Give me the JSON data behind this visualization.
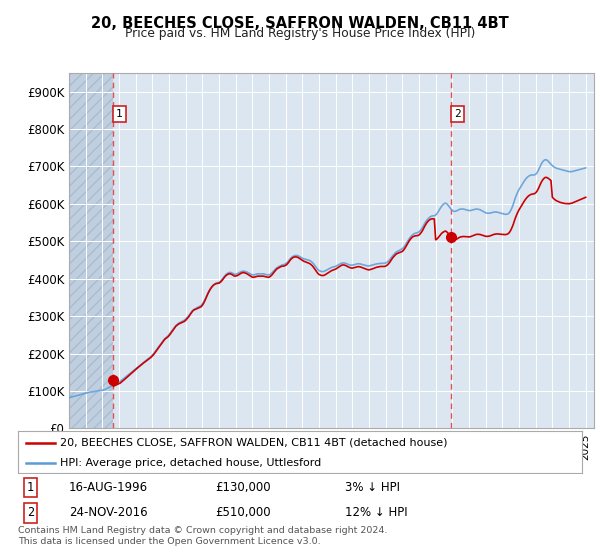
{
  "title": "20, BEECHES CLOSE, SAFFRON WALDEN, CB11 4BT",
  "subtitle": "Price paid vs. HM Land Registry's House Price Index (HPI)",
  "xlim_start": 1994.0,
  "xlim_end": 2025.5,
  "ylim_min": 0,
  "ylim_max": 950000,
  "yticks": [
    0,
    100000,
    200000,
    300000,
    400000,
    500000,
    600000,
    700000,
    800000,
    900000
  ],
  "ytick_labels": [
    "£0",
    "£100K",
    "£200K",
    "£300K",
    "£400K",
    "£500K",
    "£600K",
    "£700K",
    "£800K",
    "£900K"
  ],
  "background_color": "#ffffff",
  "plot_bg_color": "#dce6f1",
  "grid_color": "#ffffff",
  "legend_label_red": "20, BEECHES CLOSE, SAFFRON WALDEN, CB11 4BT (detached house)",
  "legend_label_blue": "HPI: Average price, detached house, Uttlesford",
  "footnote": "Contains HM Land Registry data © Crown copyright and database right 2024.\nThis data is licensed under the Open Government Licence v3.0.",
  "sale1_x": 1996.62,
  "sale1_y": 130000,
  "sale2_x": 2016.9,
  "sale2_y": 510000,
  "table_row1": [
    "1",
    "16-AUG-1996",
    "£130,000",
    "3% ↓ HPI"
  ],
  "table_row2": [
    "2",
    "24-NOV-2016",
    "£510,000",
    "12% ↓ HPI"
  ],
  "red_line_color": "#cc0000",
  "blue_line_color": "#5b9bd5",
  "hpi_x": [
    1994.0,
    1994.083,
    1994.167,
    1994.25,
    1994.333,
    1994.417,
    1994.5,
    1994.583,
    1994.667,
    1994.75,
    1994.833,
    1994.917,
    1995.0,
    1995.083,
    1995.167,
    1995.25,
    1995.333,
    1995.417,
    1995.5,
    1995.583,
    1995.667,
    1995.75,
    1995.833,
    1995.917,
    1996.0,
    1996.083,
    1996.167,
    1996.25,
    1996.333,
    1996.417,
    1996.5,
    1996.583,
    1996.667,
    1996.75,
    1996.833,
    1996.917,
    1997.0,
    1997.083,
    1997.167,
    1997.25,
    1997.333,
    1997.417,
    1997.5,
    1997.583,
    1997.667,
    1997.75,
    1997.833,
    1997.917,
    1998.0,
    1998.083,
    1998.167,
    1998.25,
    1998.333,
    1998.417,
    1998.5,
    1998.583,
    1998.667,
    1998.75,
    1998.833,
    1998.917,
    1999.0,
    1999.083,
    1999.167,
    1999.25,
    1999.333,
    1999.417,
    1999.5,
    1999.583,
    1999.667,
    1999.75,
    1999.833,
    1999.917,
    2000.0,
    2000.083,
    2000.167,
    2000.25,
    2000.333,
    2000.417,
    2000.5,
    2000.583,
    2000.667,
    2000.75,
    2000.833,
    2000.917,
    2001.0,
    2001.083,
    2001.167,
    2001.25,
    2001.333,
    2001.417,
    2001.5,
    2001.583,
    2001.667,
    2001.75,
    2001.833,
    2001.917,
    2002.0,
    2002.083,
    2002.167,
    2002.25,
    2002.333,
    2002.417,
    2002.5,
    2002.583,
    2002.667,
    2002.75,
    2002.833,
    2002.917,
    2003.0,
    2003.083,
    2003.167,
    2003.25,
    2003.333,
    2003.417,
    2003.5,
    2003.583,
    2003.667,
    2003.75,
    2003.833,
    2003.917,
    2004.0,
    2004.083,
    2004.167,
    2004.25,
    2004.333,
    2004.417,
    2004.5,
    2004.583,
    2004.667,
    2004.75,
    2004.833,
    2004.917,
    2005.0,
    2005.083,
    2005.167,
    2005.25,
    2005.333,
    2005.417,
    2005.5,
    2005.583,
    2005.667,
    2005.75,
    2005.833,
    2005.917,
    2006.0,
    2006.083,
    2006.167,
    2006.25,
    2006.333,
    2006.417,
    2006.5,
    2006.583,
    2006.667,
    2006.75,
    2006.833,
    2006.917,
    2007.0,
    2007.083,
    2007.167,
    2007.25,
    2007.333,
    2007.417,
    2007.5,
    2007.583,
    2007.667,
    2007.75,
    2007.833,
    2007.917,
    2008.0,
    2008.083,
    2008.167,
    2008.25,
    2008.333,
    2008.417,
    2008.5,
    2008.583,
    2008.667,
    2008.75,
    2008.833,
    2008.917,
    2009.0,
    2009.083,
    2009.167,
    2009.25,
    2009.333,
    2009.417,
    2009.5,
    2009.583,
    2009.667,
    2009.75,
    2009.833,
    2009.917,
    2010.0,
    2010.083,
    2010.167,
    2010.25,
    2010.333,
    2010.417,
    2010.5,
    2010.583,
    2010.667,
    2010.75,
    2010.833,
    2010.917,
    2011.0,
    2011.083,
    2011.167,
    2011.25,
    2011.333,
    2011.417,
    2011.5,
    2011.583,
    2011.667,
    2011.75,
    2011.833,
    2011.917,
    2012.0,
    2012.083,
    2012.167,
    2012.25,
    2012.333,
    2012.417,
    2012.5,
    2012.583,
    2012.667,
    2012.75,
    2012.833,
    2012.917,
    2013.0,
    2013.083,
    2013.167,
    2013.25,
    2013.333,
    2013.417,
    2013.5,
    2013.583,
    2013.667,
    2013.75,
    2013.833,
    2013.917,
    2014.0,
    2014.083,
    2014.167,
    2014.25,
    2014.333,
    2014.417,
    2014.5,
    2014.583,
    2014.667,
    2014.75,
    2014.833,
    2014.917,
    2015.0,
    2015.083,
    2015.167,
    2015.25,
    2015.333,
    2015.417,
    2015.5,
    2015.583,
    2015.667,
    2015.75,
    2015.833,
    2015.917,
    2016.0,
    2016.083,
    2016.167,
    2016.25,
    2016.333,
    2016.417,
    2016.5,
    2016.583,
    2016.667,
    2016.75,
    2016.833,
    2016.917,
    2017.0,
    2017.083,
    2017.167,
    2017.25,
    2017.333,
    2017.417,
    2017.5,
    2017.583,
    2017.667,
    2017.75,
    2017.833,
    2017.917,
    2018.0,
    2018.083,
    2018.167,
    2018.25,
    2018.333,
    2018.417,
    2018.5,
    2018.583,
    2018.667,
    2018.75,
    2018.833,
    2018.917,
    2019.0,
    2019.083,
    2019.167,
    2019.25,
    2019.333,
    2019.417,
    2019.5,
    2019.583,
    2019.667,
    2019.75,
    2019.833,
    2019.917,
    2020.0,
    2020.083,
    2020.167,
    2020.25,
    2020.333,
    2020.417,
    2020.5,
    2020.583,
    2020.667,
    2020.75,
    2020.833,
    2020.917,
    2021.0,
    2021.083,
    2021.167,
    2021.25,
    2021.333,
    2021.417,
    2021.5,
    2021.583,
    2021.667,
    2021.75,
    2021.833,
    2021.917,
    2022.0,
    2022.083,
    2022.167,
    2022.25,
    2022.333,
    2022.417,
    2022.5,
    2022.583,
    2022.667,
    2022.75,
    2022.833,
    2022.917,
    2023.0,
    2023.083,
    2023.167,
    2023.25,
    2023.333,
    2023.417,
    2023.5,
    2023.583,
    2023.667,
    2023.75,
    2023.833,
    2023.917,
    2024.0,
    2024.083,
    2024.167,
    2024.25,
    2024.333,
    2024.417,
    2024.5,
    2024.583,
    2024.667,
    2024.75,
    2024.833,
    2024.917,
    2025.0
  ],
  "hpi_y": [
    82000,
    83000,
    84000,
    85000,
    86000,
    87000,
    88000,
    89000,
    90000,
    91000,
    92000,
    93000,
    94000,
    95000,
    96000,
    97000,
    97500,
    98000,
    98500,
    99000,
    99500,
    100000,
    100500,
    101000,
    102000,
    103000,
    104000,
    106000,
    108000,
    110000,
    112000,
    114000,
    116000,
    118000,
    120000,
    122000,
    124000,
    126000,
    129000,
    132000,
    135000,
    138000,
    141000,
    144000,
    147000,
    150000,
    153000,
    156000,
    159000,
    162000,
    165000,
    168000,
    171000,
    174000,
    177000,
    180000,
    183000,
    186000,
    189000,
    192000,
    196000,
    200000,
    205000,
    210000,
    215000,
    220000,
    225000,
    230000,
    235000,
    240000,
    243000,
    246000,
    250000,
    255000,
    260000,
    265000,
    270000,
    275000,
    278000,
    281000,
    283000,
    285000,
    287000,
    289000,
    292000,
    296000,
    300000,
    305000,
    310000,
    315000,
    318000,
    320000,
    322000,
    324000,
    326000,
    328000,
    332000,
    338000,
    345000,
    353000,
    361000,
    368000,
    374000,
    379000,
    383000,
    386000,
    388000,
    389000,
    390000,
    393000,
    397000,
    402000,
    407000,
    411000,
    414000,
    416000,
    417000,
    416000,
    414000,
    412000,
    412000,
    413000,
    415000,
    417000,
    419000,
    420000,
    420000,
    419000,
    418000,
    416000,
    414000,
    412000,
    410000,
    410000,
    411000,
    412000,
    413000,
    413000,
    413000,
    413000,
    413000,
    412000,
    411000,
    410000,
    410000,
    412000,
    415000,
    419000,
    423000,
    427000,
    430000,
    432000,
    434000,
    436000,
    437000,
    438000,
    440000,
    443000,
    447000,
    452000,
    456000,
    459000,
    461000,
    462000,
    462000,
    461000,
    459000,
    457000,
    455000,
    453000,
    452000,
    451000,
    450000,
    449000,
    447000,
    444000,
    440000,
    435000,
    430000,
    425000,
    422000,
    420000,
    419000,
    419000,
    420000,
    422000,
    424000,
    426000,
    428000,
    430000,
    431000,
    432000,
    433000,
    435000,
    437000,
    439000,
    441000,
    442000,
    442000,
    441000,
    440000,
    438000,
    437000,
    436000,
    436000,
    437000,
    438000,
    439000,
    440000,
    440000,
    439000,
    438000,
    437000,
    436000,
    435000,
    434000,
    434000,
    435000,
    436000,
    437000,
    438000,
    439000,
    440000,
    440000,
    441000,
    441000,
    441000,
    441000,
    442000,
    444000,
    447000,
    451000,
    456000,
    461000,
    465000,
    469000,
    472000,
    474000,
    476000,
    478000,
    480000,
    484000,
    489000,
    495000,
    501000,
    507000,
    512000,
    516000,
    519000,
    521000,
    522000,
    523000,
    525000,
    529000,
    534000,
    540000,
    547000,
    553000,
    558000,
    562000,
    565000,
    567000,
    568000,
    568000,
    570000,
    574000,
    580000,
    586000,
    592000,
    597000,
    600000,
    602000,
    600000,
    596000,
    591000,
    586000,
    582000,
    580000,
    580000,
    581000,
    583000,
    585000,
    586000,
    586000,
    586000,
    585000,
    584000,
    583000,
    582000,
    582000,
    583000,
    584000,
    585000,
    586000,
    586000,
    585000,
    584000,
    582000,
    580000,
    578000,
    576000,
    575000,
    575000,
    575000,
    576000,
    577000,
    578000,
    578000,
    578000,
    577000,
    576000,
    575000,
    574000,
    573000,
    572000,
    572000,
    573000,
    576000,
    582000,
    590000,
    600000,
    612000,
    622000,
    631000,
    638000,
    644000,
    650000,
    656000,
    662000,
    667000,
    671000,
    674000,
    676000,
    677000,
    677000,
    677000,
    679000,
    683000,
    690000,
    698000,
    706000,
    712000,
    716000,
    718000,
    717000,
    714000,
    710000,
    706000,
    702000,
    699000,
    697000,
    695000,
    694000,
    693000,
    692000,
    691000,
    690000,
    689000,
    688000,
    687000,
    686000,
    686000,
    686000,
    687000,
    688000,
    689000,
    690000,
    691000,
    692000,
    693000,
    694000,
    695000,
    696000
  ],
  "red_y_factors": [
    1.0,
    1.0,
    1.0,
    1.0,
    1.0,
    1.0,
    1.0,
    1.0,
    1.0,
    1.0,
    1.0,
    1.0,
    1.0,
    1.0,
    1.0,
    1.0,
    1.0,
    1.0,
    1.0,
    1.0,
    1.0,
    1.0,
    1.0,
    1.0,
    1.0,
    1.0,
    1.0,
    1.0,
    1.0,
    1.0,
    1.0,
    0.975,
    0.972,
    0.97,
    0.968,
    0.966,
    0.965,
    0.963,
    0.965,
    0.968,
    0.97,
    0.972,
    0.975,
    0.978,
    0.98,
    0.983,
    0.985,
    0.988,
    0.99,
    0.991,
    0.992,
    0.993,
    0.993,
    0.993,
    0.993,
    0.992,
    0.991,
    0.99,
    0.989,
    0.988,
    0.987,
    0.987,
    0.988,
    0.989,
    0.991,
    0.992,
    0.993,
    0.993,
    0.993,
    0.993,
    0.992,
    0.991,
    0.99,
    0.99,
    0.991,
    0.992,
    0.993,
    0.994,
    0.994,
    0.993,
    0.992,
    0.991,
    0.99,
    0.989,
    0.989,
    0.99,
    0.991,
    0.993,
    0.994,
    0.995,
    0.995,
    0.994,
    0.993,
    0.992,
    0.991,
    0.99,
    0.99,
    0.991,
    0.993,
    0.995,
    0.997,
    0.998,
    0.999,
    0.999,
    0.999,
    0.998,
    0.997,
    0.996,
    0.995,
    0.994,
    0.993,
    0.993,
    0.993,
    0.993,
    0.993,
    0.992,
    0.991,
    0.99,
    0.989,
    0.988,
    0.988,
    0.988,
    0.988,
    0.989,
    0.99,
    0.991,
    0.991,
    0.99,
    0.989,
    0.988,
    0.987,
    0.986,
    0.985,
    0.985,
    0.985,
    0.985,
    0.985,
    0.985,
    0.985,
    0.985,
    0.985,
    0.985,
    0.985,
    0.985,
    0.985,
    0.986,
    0.987,
    0.989,
    0.991,
    0.992,
    0.993,
    0.993,
    0.993,
    0.993,
    0.992,
    0.991,
    0.99,
    0.99,
    0.991,
    0.992,
    0.993,
    0.993,
    0.993,
    0.992,
    0.991,
    0.99,
    0.989,
    0.988,
    0.987,
    0.986,
    0.985,
    0.984,
    0.983,
    0.982,
    0.981,
    0.98,
    0.979,
    0.978,
    0.977,
    0.976,
    0.975,
    0.975,
    0.975,
    0.975,
    0.975,
    0.976,
    0.977,
    0.978,
    0.979,
    0.98,
    0.981,
    0.982,
    0.983,
    0.984,
    0.985,
    0.986,
    0.987,
    0.988,
    0.988,
    0.987,
    0.986,
    0.985,
    0.984,
    0.983,
    0.982,
    0.982,
    0.982,
    0.982,
    0.982,
    0.982,
    0.982,
    0.981,
    0.98,
    0.979,
    0.978,
    0.977,
    0.976,
    0.976,
    0.976,
    0.977,
    0.978,
    0.979,
    0.98,
    0.98,
    0.981,
    0.981,
    0.981,
    0.981,
    0.981,
    0.982,
    0.983,
    0.985,
    0.987,
    0.988,
    0.989,
    0.989,
    0.989,
    0.988,
    0.987,
    0.986,
    0.985,
    0.985,
    0.986,
    0.987,
    0.988,
    0.989,
    0.989,
    0.989,
    0.988,
    0.987,
    0.986,
    0.985,
    0.984,
    0.984,
    0.984,
    0.985,
    0.986,
    0.987,
    0.988,
    0.988,
    0.988,
    0.987,
    0.986,
    0.985,
    0.884,
    0.882,
    0.88,
    0.879,
    0.878,
    0.877,
    0.876,
    0.876,
    0.875,
    0.874,
    0.873,
    0.872,
    0.871,
    0.87,
    0.87,
    0.87,
    0.871,
    0.872,
    0.873,
    0.874,
    0.875,
    0.876,
    0.877,
    0.878,
    0.879,
    0.88,
    0.881,
    0.882,
    0.883,
    0.884,
    0.885,
    0.886,
    0.887,
    0.888,
    0.889,
    0.89,
    0.891,
    0.892,
    0.893,
    0.894,
    0.895,
    0.896,
    0.897,
    0.898,
    0.899,
    0.9,
    0.901,
    0.902,
    0.903,
    0.904,
    0.905,
    0.906,
    0.907,
    0.908,
    0.909,
    0.91,
    0.911,
    0.912,
    0.913,
    0.914,
    0.915,
    0.916,
    0.917,
    0.918,
    0.919,
    0.92,
    0.921,
    0.922,
    0.923,
    0.924,
    0.925,
    0.926,
    0.927,
    0.928,
    0.929,
    0.93,
    0.931,
    0.932,
    0.933,
    0.934,
    0.935,
    0.936,
    0.937,
    0.938,
    0.88,
    0.878,
    0.876,
    0.875,
    0.874,
    0.873,
    0.872,
    0.872,
    0.872,
    0.872,
    0.873,
    0.874,
    0.875,
    0.876,
    0.877,
    0.878,
    0.879,
    0.88,
    0.881,
    0.882,
    0.883,
    0.884,
    0.885,
    0.886,
    0.887
  ]
}
